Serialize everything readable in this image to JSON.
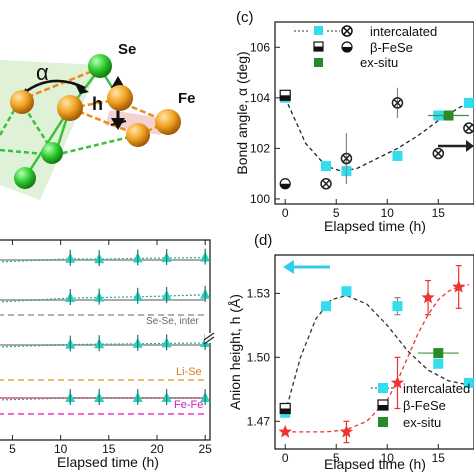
{
  "crystal": {
    "labels": {
      "se": "Se",
      "fe": "Fe",
      "alpha": "α",
      "h": "h"
    },
    "colors": {
      "se": "#2ecc2e",
      "fe": "#ee9a10",
      "bond_green": "#3cbf3c",
      "bond_orange": "#f08a1a",
      "plane": "#d9ead0",
      "plane_pink": "#f2c4c4"
    }
  },
  "chart_data": [
    {
      "panel_label": "(c)",
      "type": "scatter",
      "ylabel": "Bond angle, α (deg)",
      "xlabel": "Elapsed time (h)",
      "xlim": [
        -1,
        18.5
      ],
      "ylim": [
        99.8,
        107
      ],
      "xticks": [
        0,
        5,
        10,
        15
      ],
      "yticks": [
        100,
        102,
        104,
        106
      ],
      "legend": {
        "placement": "top-right",
        "entries": [
          {
            "label": "intercalated",
            "marker": "cyan-square",
            "alt_marker": "crossed-circle"
          },
          {
            "label": "β-FeSe",
            "marker": "half-square",
            "alt_marker": "half-circle"
          },
          {
            "label": "ex-situ",
            "marker": "green-square"
          }
        ]
      },
      "series": [
        {
          "name": "intercalated",
          "marker": "cyan-square",
          "color": "#33ddee",
          "x": [
            0,
            4,
            6,
            11,
            15,
            18
          ],
          "y": [
            104.0,
            101.3,
            101.1,
            101.7,
            103.3,
            103.8
          ],
          "yerr": [
            0,
            0,
            0.5,
            0,
            0,
            0
          ]
        },
        {
          "name": "intercalated",
          "marker": "crossed-circle",
          "color": "#222222",
          "x": [
            4,
            6,
            11,
            15,
            18
          ],
          "y": [
            100.6,
            101.6,
            103.8,
            101.8,
            102.8
          ],
          "yerr": [
            0,
            1.0,
            0.6,
            0,
            0
          ]
        },
        {
          "name": "β-FeSe",
          "marker": "half-square",
          "color": "#111111",
          "x": [
            0
          ],
          "y": [
            104.1
          ],
          "yerr": [
            0
          ]
        },
        {
          "name": "β-FeSe",
          "marker": "half-circle",
          "color": "#111111",
          "x": [
            0
          ],
          "y": [
            100.6
          ],
          "yerr": [
            0
          ]
        },
        {
          "name": "ex-situ",
          "marker": "green-square",
          "color": "#2a8a2a",
          "x": [
            16
          ],
          "y": [
            103.3
          ],
          "yerr": [
            0
          ],
          "xerr": [
            2
          ]
        }
      ],
      "fit": {
        "x": [
          0,
          2,
          4,
          5.5,
          7,
          9,
          11,
          13,
          15,
          17,
          18.5
        ],
        "y": [
          104.0,
          102.2,
          101.3,
          101.1,
          101.2,
          101.6,
          102.0,
          102.5,
          103.1,
          103.6,
          103.9
        ],
        "color": "#222222",
        "style": "dashed"
      },
      "arrow": {
        "direction": "right",
        "color": "#222222"
      }
    },
    {
      "panel_label": "(d)",
      "type": "scatter",
      "ylabel": "Anion height, h (Å)",
      "xlabel": "Elapsed time (h)",
      "xlim": [
        -1,
        18.5
      ],
      "ylim": [
        1.457,
        1.548
      ],
      "xticks": [
        0,
        5,
        10,
        15
      ],
      "yticks": [
        1.47,
        1.5,
        1.53
      ],
      "legend": {
        "placement": "bottom-right",
        "entries": [
          {
            "label": "intercalated",
            "marker": "cyan-square"
          },
          {
            "label": "β-FeSe",
            "marker": "half-square"
          },
          {
            "label": "ex-situ",
            "marker": "green-square"
          }
        ]
      },
      "series": [
        {
          "name": "intercalated",
          "marker": "cyan-square",
          "color": "#33ddee",
          "x": [
            0,
            4,
            6,
            11,
            15,
            18
          ],
          "y": [
            1.474,
            1.524,
            1.531,
            1.524,
            1.497,
            1.488
          ],
          "yerr": [
            0,
            0,
            0,
            0.004,
            0,
            0
          ]
        },
        {
          "name": "red stars",
          "marker": "star",
          "color": "#ee3333",
          "x": [
            0,
            6,
            11,
            14,
            17
          ],
          "y": [
            1.465,
            1.465,
            1.488,
            1.528,
            1.533
          ],
          "yerr": [
            0,
            0.005,
            0.012,
            0.008,
            0.01
          ]
        },
        {
          "name": "β-FeSe",
          "marker": "half-square",
          "color": "#111111",
          "x": [
            0
          ],
          "y": [
            1.476
          ],
          "yerr": [
            0
          ]
        },
        {
          "name": "ex-situ",
          "marker": "green-square",
          "color": "#2a8a2a",
          "x": [
            15
          ],
          "y": [
            1.502
          ],
          "yerr": [
            0
          ],
          "xerr": [
            2
          ]
        }
      ],
      "fits": [
        {
          "x": [
            0,
            1.5,
            3,
            4.5,
            6,
            8,
            10,
            12,
            14,
            16,
            18
          ],
          "y": [
            1.474,
            1.5,
            1.518,
            1.527,
            1.529,
            1.525,
            1.515,
            1.503,
            1.494,
            1.489,
            1.487
          ],
          "color": "#333333",
          "style": "dashed"
        },
        {
          "x": [
            0,
            2,
            4,
            6,
            8,
            10,
            11,
            12,
            13,
            14,
            15,
            16,
            17,
            18
          ],
          "y": [
            1.465,
            1.465,
            1.465,
            1.466,
            1.47,
            1.48,
            1.489,
            1.5,
            1.511,
            1.52,
            1.527,
            1.531,
            1.533,
            1.534
          ],
          "color": "#ee3333",
          "style": "dashed"
        }
      ],
      "arrow": {
        "direction": "left",
        "color": "#33ccee"
      }
    },
    {
      "panel_label": "",
      "type": "line",
      "xlabel": "Elapsed time (h)",
      "xlim": [
        3.5,
        25.5
      ],
      "xticks": [
        5,
        10,
        15,
        20,
        25
      ],
      "ylabel": "",
      "bond_labels": [
        "Se-Se, inter",
        "Li-Se",
        "Fe-Fe"
      ],
      "series": [
        {
          "name": "row 1",
          "color": "#22aa88",
          "marker": "cyan-triangle",
          "x": [
            11,
            14,
            18,
            21,
            25
          ],
          "y": [
            0.3,
            0.2,
            0.4,
            0.5,
            0.6
          ],
          "baseline": 0,
          "baseline_color": "#aaaaaa"
        },
        {
          "name": "row 2",
          "color": "#22aa88",
          "marker": "cyan-triangle",
          "x": [
            11,
            14,
            18,
            21,
            25
          ],
          "y": [
            0.5,
            0.6,
            0.8,
            1.0,
            1.3
          ],
          "baseline": 0,
          "baseline_color": "#aaaaaa"
        },
        {
          "name": "row 3",
          "color": "#22aa88",
          "marker": "cyan-triangle",
          "x": [
            11,
            14,
            18,
            21,
            25
          ],
          "y": [
            0.1,
            0.2,
            0.3,
            0.4,
            0.5
          ],
          "baseline": 0,
          "baseline_color": "#aaaaaa"
        },
        {
          "name": "row 4",
          "color": "#22aa88",
          "marker": "cyan-triangle",
          "x": [
            11,
            14,
            18,
            21,
            25
          ],
          "y": [
            0.0,
            0.0,
            0.0,
            0.0,
            0.0
          ],
          "baseline": 0,
          "baseline_color": "#ee7799"
        }
      ],
      "reference_lines": [
        {
          "label": "Se-Se, inter",
          "color": "#999999"
        },
        {
          "label": "Li-Se",
          "color": "#f0a040"
        },
        {
          "label": "Fe-Fe",
          "color": "#ee33cc"
        }
      ]
    }
  ]
}
